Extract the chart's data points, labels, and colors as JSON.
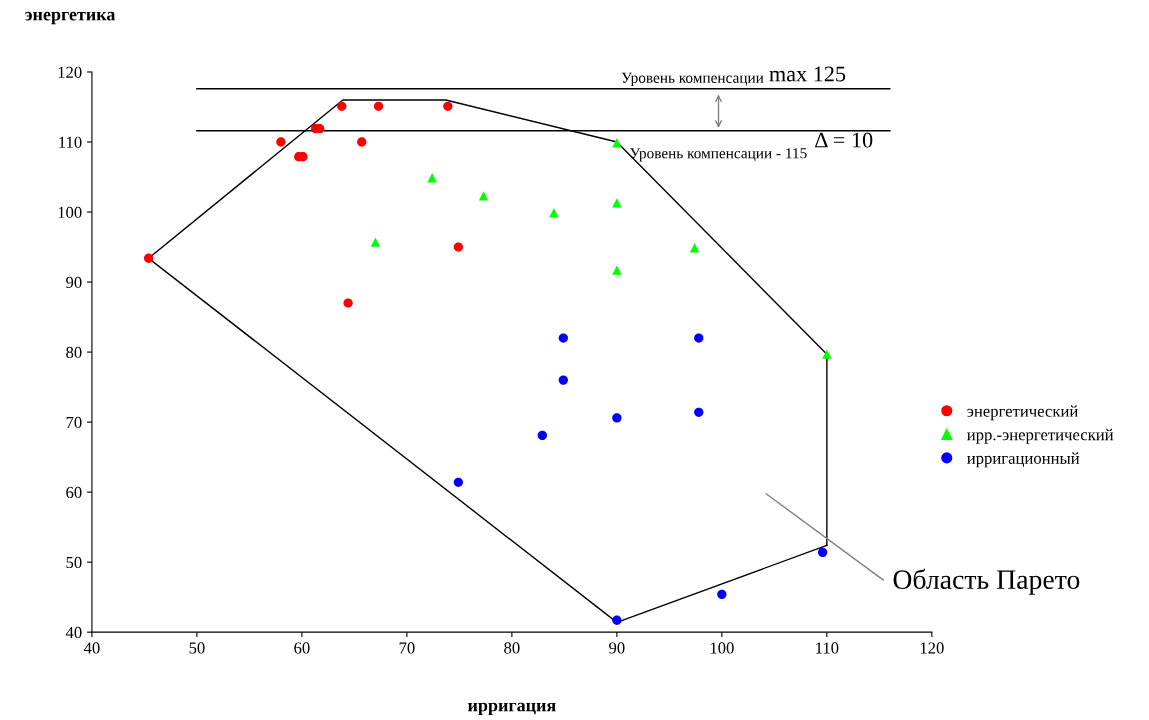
{
  "chart_data": {
    "type": "scatter",
    "xlabel": "ирригация",
    "ylabel": "энергетика",
    "xlim": [
      40,
      120
    ],
    "xticks": [
      40,
      50,
      60,
      70,
      80,
      90,
      100,
      110,
      120
    ],
    "ylim": [
      40,
      120
    ],
    "yticks": [
      40,
      50,
      60,
      70,
      80,
      90,
      100,
      110,
      120
    ],
    "grid": false,
    "legend": "right",
    "series": [
      {
        "name": "энергетический",
        "color": "#ff0000",
        "marker": "circle",
        "x": [
          45.4,
          58,
          59.7,
          60.1,
          61.3,
          61.7,
          63.8,
          67.3,
          73.9,
          65.7,
          64.4,
          74.9
        ],
        "values": [
          93.4,
          110,
          107.9,
          107.9,
          111.9,
          111.9,
          115.1,
          115.1,
          115.1,
          110,
          87,
          95
        ]
      },
      {
        "name": "ирр.-энергетический",
        "color": "#00ff00",
        "marker": "triangle",
        "x": [
          72.4,
          77.3,
          84,
          90,
          90,
          90,
          67,
          97.4,
          110
        ],
        "values": [
          104.9,
          102.3,
          99.9,
          109.9,
          101.3,
          91.7,
          95.7,
          94.9,
          79.7
        ]
      },
      {
        "name": "ирригационный",
        "color": "#0000ff",
        "marker": "circle",
        "x": [
          74.9,
          82.9,
          84.9,
          84.9,
          90,
          90,
          97.8,
          97.8,
          100,
          109.6
        ],
        "values": [
          61.4,
          68.1,
          82,
          76,
          70.6,
          41.7,
          82,
          71.4,
          45.4,
          51.4
        ]
      },
      {
        "type": "line",
        "color": "#000000",
        "marker": "none",
        "x": [
          45.4,
          63.9,
          73.7,
          90,
          110
        ],
        "values": [
          93.4,
          116,
          116,
          110,
          79.7
        ]
      },
      {
        "type": "line",
        "color": "#000000",
        "marker": "none",
        "x": [
          110,
          110
        ],
        "values": [
          79.7,
          52.4
        ]
      },
      {
        "type": "line",
        "color": "#000000",
        "marker": "none",
        "x": [
          45.4,
          90,
          110
        ],
        "values": [
          93.4,
          41.4,
          52.4
        ]
      },
      {
        "type": "line",
        "color": "#000000",
        "marker": "none",
        "x": [
          50,
          116
        ],
        "values": [
          117.6,
          117.6
        ]
      },
      {
        "type": "line",
        "color": "#000000",
        "marker": "none",
        "x": [
          50,
          116
        ],
        "values": [
          111.6,
          111.6
        ]
      }
    ],
    "annotations": [
      "Уровень компенсации",
      "max 125",
      "Δ = 10",
      "Уровень компенсации - 115",
      "Область Парето"
    ]
  }
}
